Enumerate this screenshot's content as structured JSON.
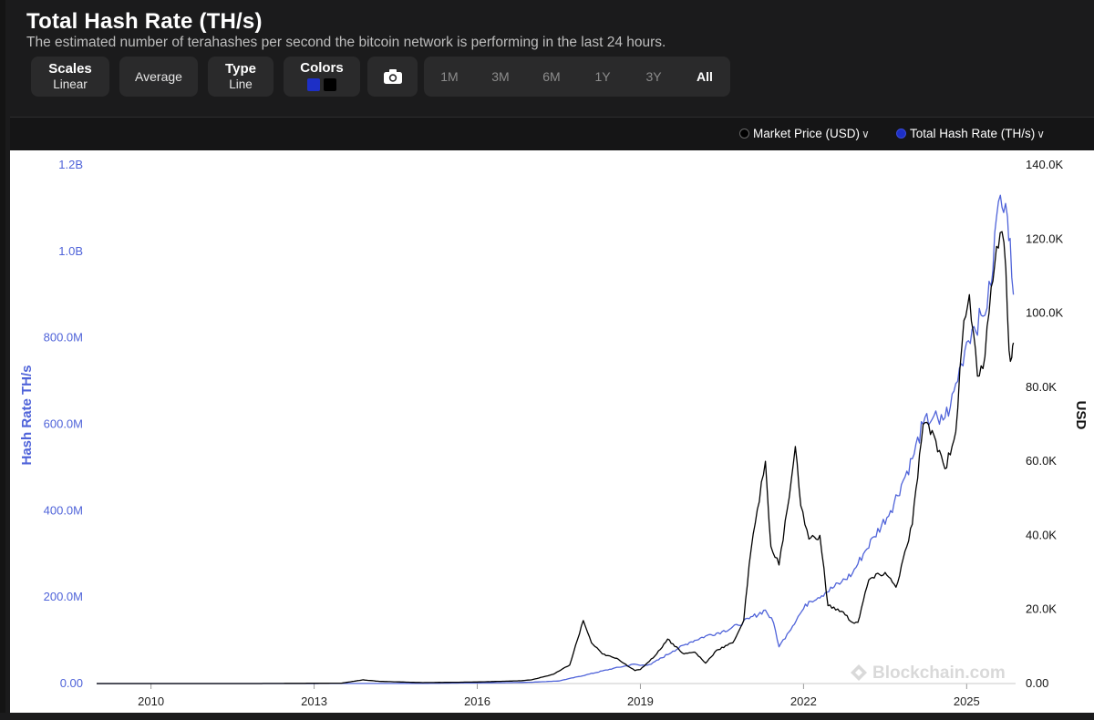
{
  "header": {
    "title": "Total Hash Rate (TH/s)",
    "subtitle": "The estimated number of terahashes per second the bitcoin network is performing in the last 24 hours."
  },
  "toolbar": {
    "scales": {
      "label": "Scales",
      "value": "Linear"
    },
    "average": {
      "label": "Average"
    },
    "type": {
      "label": "Type",
      "value": "Line"
    },
    "colors": {
      "label": "Colors",
      "swatches": [
        "#1d2fc6",
        "#000000"
      ]
    },
    "camera_icon": "camera-icon",
    "ranges": [
      "1M",
      "3M",
      "6M",
      "1Y",
      "3Y",
      "All"
    ],
    "active_range": "All"
  },
  "legend": {
    "items": [
      {
        "label": "Market Price (USD)",
        "color": "#000000"
      },
      {
        "label": "Total Hash Rate (TH/s)",
        "color": "#1d2fc6"
      }
    ],
    "chevron_icon": "chevron-down-icon"
  },
  "chart_data": {
    "type": "line",
    "xlabel": "",
    "x_ticks": [
      "2010",
      "2013",
      "2016",
      "2019",
      "2022",
      "2025"
    ],
    "x_range": [
      2009.0,
      2025.9
    ],
    "watermark": "Blockchain.com",
    "y_left": {
      "label": "Hash Rate TH/s",
      "ticks": [
        "0.00",
        "200.0M",
        "400.0M",
        "600.0M",
        "800.0M",
        "1.0B",
        "1.2B"
      ],
      "range": [
        0,
        1200000000
      ],
      "color": "#4f63d9"
    },
    "y_right": {
      "label": "USD",
      "ticks": [
        "0.00",
        "20.0K",
        "40.0K",
        "60.0K",
        "80.0K",
        "100.0K",
        "120.0K",
        "140.0K"
      ],
      "range": [
        0,
        140000
      ],
      "color": "#000000"
    },
    "series": [
      {
        "name": "Total Hash Rate (TH/s)",
        "axis": "left",
        "color": "#4f63d9",
        "points": [
          [
            2009.0,
            0
          ],
          [
            2012.0,
            0
          ],
          [
            2014.0,
            200000
          ],
          [
            2015.0,
            400000
          ],
          [
            2016.0,
            1500000
          ],
          [
            2016.5,
            2000000
          ],
          [
            2017.0,
            3000000
          ],
          [
            2017.5,
            6000000
          ],
          [
            2018.0,
            20000000
          ],
          [
            2018.5,
            35000000
          ],
          [
            2018.9,
            45000000
          ],
          [
            2019.0,
            42000000
          ],
          [
            2019.2,
            45000000
          ],
          [
            2019.6,
            75000000
          ],
          [
            2019.9,
            95000000
          ],
          [
            2020.2,
            110000000
          ],
          [
            2020.5,
            120000000
          ],
          [
            2020.8,
            135000000
          ],
          [
            2021.0,
            150000000
          ],
          [
            2021.3,
            170000000
          ],
          [
            2021.45,
            140000000
          ],
          [
            2021.55,
            85000000
          ],
          [
            2021.7,
            115000000
          ],
          [
            2021.9,
            155000000
          ],
          [
            2022.1,
            190000000
          ],
          [
            2022.4,
            210000000
          ],
          [
            2022.7,
            235000000
          ],
          [
            2022.9,
            255000000
          ],
          [
            2023.1,
            300000000
          ],
          [
            2023.3,
            340000000
          ],
          [
            2023.6,
            400000000
          ],
          [
            2023.8,
            460000000
          ],
          [
            2024.0,
            520000000
          ],
          [
            2024.2,
            600000000
          ],
          [
            2024.4,
            620000000
          ],
          [
            2024.5,
            600000000
          ],
          [
            2024.7,
            640000000
          ],
          [
            2024.9,
            740000000
          ],
          [
            2025.0,
            790000000
          ],
          [
            2025.1,
            820000000
          ],
          [
            2025.3,
            850000000
          ],
          [
            2025.45,
            920000000
          ],
          [
            2025.55,
            1080000000
          ],
          [
            2025.62,
            1130000000
          ],
          [
            2025.68,
            1090000000
          ],
          [
            2025.75,
            1080000000
          ],
          [
            2025.8,
            1030000000
          ],
          [
            2025.86,
            900000000
          ]
        ]
      },
      {
        "name": "Market Price (USD)",
        "axis": "right",
        "color": "#000000",
        "points": [
          [
            2009.0,
            0
          ],
          [
            2012.0,
            10
          ],
          [
            2013.5,
            100
          ],
          [
            2013.9,
            1000
          ],
          [
            2014.2,
            600
          ],
          [
            2015.0,
            250
          ],
          [
            2016.0,
            420
          ],
          [
            2016.8,
            750
          ],
          [
            2017.0,
            1000
          ],
          [
            2017.4,
            2500
          ],
          [
            2017.7,
            5000
          ],
          [
            2017.95,
            17000
          ],
          [
            2018.1,
            11000
          ],
          [
            2018.3,
            8000
          ],
          [
            2018.6,
            6500
          ],
          [
            2018.9,
            3500
          ],
          [
            2019.0,
            3800
          ],
          [
            2019.3,
            8000
          ],
          [
            2019.5,
            12000
          ],
          [
            2019.8,
            8000
          ],
          [
            2020.0,
            8500
          ],
          [
            2020.2,
            5500
          ],
          [
            2020.4,
            9000
          ],
          [
            2020.7,
            11000
          ],
          [
            2020.9,
            17000
          ],
          [
            2021.0,
            32000
          ],
          [
            2021.15,
            47000
          ],
          [
            2021.3,
            60000
          ],
          [
            2021.4,
            37000
          ],
          [
            2021.55,
            32000
          ],
          [
            2021.7,
            47000
          ],
          [
            2021.85,
            64000
          ],
          [
            2021.95,
            48000
          ],
          [
            2022.1,
            39000
          ],
          [
            2022.3,
            40000
          ],
          [
            2022.45,
            21000
          ],
          [
            2022.7,
            19500
          ],
          [
            2022.9,
            16500
          ],
          [
            2023.0,
            16500
          ],
          [
            2023.2,
            28000
          ],
          [
            2023.5,
            30000
          ],
          [
            2023.7,
            26000
          ],
          [
            2023.9,
            37000
          ],
          [
            2024.0,
            43000
          ],
          [
            2024.2,
            70000
          ],
          [
            2024.4,
            67000
          ],
          [
            2024.6,
            58000
          ],
          [
            2024.8,
            68000
          ],
          [
            2024.95,
            98000
          ],
          [
            2025.05,
            105000
          ],
          [
            2025.2,
            83000
          ],
          [
            2025.3,
            85000
          ],
          [
            2025.45,
            107000
          ],
          [
            2025.55,
            118000
          ],
          [
            2025.65,
            122000
          ],
          [
            2025.72,
            112000
          ],
          [
            2025.78,
            90000
          ],
          [
            2025.83,
            88000
          ],
          [
            2025.86,
            92000
          ]
        ]
      }
    ]
  }
}
